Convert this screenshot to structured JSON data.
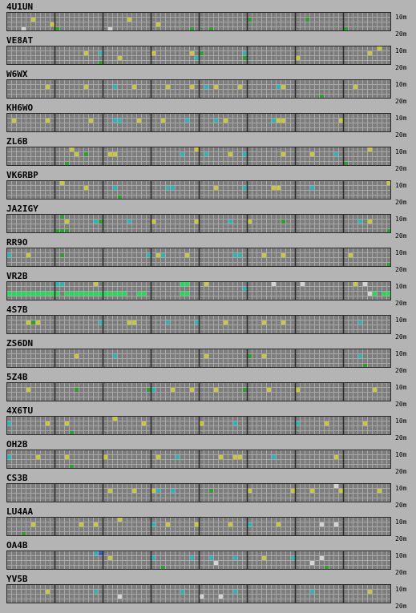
{
  "band_labels": {
    "top": "10m",
    "bottom": "20m"
  },
  "colors": {
    "background": "#b4b4b4",
    "cell": "#7d7d7d",
    "cell_line": "#a8a8a8",
    "hour_divider": "#2a2a2a",
    "yellow_signal": "#c8c83a",
    "cyan_signal": "#2ab5b5",
    "green_signal": "#2f9e2f",
    "bright_green_signal": "#18e050",
    "white_signal": "#d4d4d4",
    "blue_signal": "#3060d0"
  },
  "stations": [
    {
      "call": "4U1UN",
      "cells": [
        [
          5,
          1,
          "yellow"
        ],
        [
          9,
          2,
          "yellow"
        ],
        [
          3,
          3,
          "white"
        ],
        [
          10,
          3,
          "green"
        ],
        [
          25,
          1,
          "yellow"
        ],
        [
          21,
          3,
          "white"
        ],
        [
          31,
          2,
          "yellow"
        ],
        [
          38,
          3,
          "green"
        ],
        [
          42,
          3,
          "green"
        ],
        [
          50,
          1,
          "green"
        ],
        [
          62,
          1,
          "green"
        ],
        [
          70,
          3,
          "green"
        ]
      ]
    },
    {
      "call": "VE8AT",
      "cells": [
        [
          16,
          1,
          "yellow"
        ],
        [
          19,
          1,
          "cyan"
        ],
        [
          23,
          2,
          "yellow"
        ],
        [
          19,
          3,
          "green"
        ],
        [
          30,
          1,
          "yellow"
        ],
        [
          38,
          1,
          "yellow"
        ],
        [
          39,
          2,
          "cyan"
        ],
        [
          40,
          1,
          "green"
        ],
        [
          49,
          1,
          "cyan"
        ],
        [
          49,
          2,
          "green"
        ],
        [
          60,
          2,
          "yellow"
        ],
        [
          75,
          1,
          "yellow"
        ],
        [
          77,
          0,
          "yellow"
        ]
      ]
    },
    {
      "call": "W6WX",
      "cells": [
        [
          8,
          1,
          "yellow"
        ],
        [
          16,
          1,
          "yellow"
        ],
        [
          22,
          1,
          "cyan"
        ],
        [
          26,
          1,
          "yellow"
        ],
        [
          33,
          1,
          "yellow"
        ],
        [
          38,
          1,
          "yellow"
        ],
        [
          41,
          1,
          "cyan"
        ],
        [
          43,
          1,
          "yellow"
        ],
        [
          48,
          1,
          "yellow"
        ],
        [
          56,
          1,
          "cyan"
        ],
        [
          57,
          1,
          "yellow"
        ],
        [
          65,
          3,
          "green"
        ],
        [
          72,
          1,
          "yellow"
        ]
      ]
    },
    {
      "call": "KH6WO",
      "cells": [
        [
          1,
          1,
          "yellow"
        ],
        [
          8,
          1,
          "yellow"
        ],
        [
          17,
          1,
          "yellow"
        ],
        [
          22,
          1,
          "cyan"
        ],
        [
          23,
          1,
          "cyan"
        ],
        [
          27,
          1,
          "yellow"
        ],
        [
          32,
          1,
          "yellow"
        ],
        [
          37,
          1,
          "cyan"
        ],
        [
          43,
          1,
          "cyan"
        ],
        [
          45,
          1,
          "yellow"
        ],
        [
          55,
          1,
          "cyan"
        ],
        [
          56,
          1,
          "yellow"
        ],
        [
          57,
          1,
          "yellow"
        ],
        [
          69,
          1,
          "yellow"
        ]
      ]
    },
    {
      "call": "ZL6B",
      "cells": [
        [
          13,
          0,
          "yellow"
        ],
        [
          14,
          1,
          "yellow"
        ],
        [
          16,
          1,
          "green"
        ],
        [
          21,
          1,
          "yellow"
        ],
        [
          22,
          1,
          "yellow"
        ],
        [
          36,
          1,
          "cyan"
        ],
        [
          39,
          0,
          "yellow"
        ],
        [
          41,
          1,
          "cyan"
        ],
        [
          46,
          1,
          "yellow"
        ],
        [
          49,
          1,
          "cyan"
        ],
        [
          57,
          1,
          "yellow"
        ],
        [
          63,
          1,
          "yellow"
        ],
        [
          68,
          1,
          "cyan"
        ],
        [
          75,
          0,
          "yellow"
        ],
        [
          70,
          3,
          "green"
        ],
        [
          12,
          3,
          "green"
        ]
      ]
    },
    {
      "call": "VK6RBP",
      "cells": [
        [
          11,
          0,
          "yellow"
        ],
        [
          16,
          1,
          "yellow"
        ],
        [
          22,
          1,
          "cyan"
        ],
        [
          33,
          1,
          "cyan"
        ],
        [
          34,
          1,
          "cyan"
        ],
        [
          43,
          1,
          "yellow"
        ],
        [
          49,
          1,
          "cyan"
        ],
        [
          55,
          1,
          "yellow"
        ],
        [
          56,
          1,
          "yellow"
        ],
        [
          63,
          1,
          "cyan"
        ],
        [
          79,
          0,
          "yellow"
        ],
        [
          23,
          3,
          "green"
        ]
      ]
    },
    {
      "call": "JA2IGY",
      "cells": [
        [
          11,
          0,
          "green"
        ],
        [
          12,
          1,
          "yellow"
        ],
        [
          18,
          1,
          "cyan"
        ],
        [
          19,
          1,
          "green"
        ],
        [
          25,
          1,
          "cyan"
        ],
        [
          30,
          1,
          "yellow"
        ],
        [
          39,
          1,
          "yellow"
        ],
        [
          46,
          1,
          "cyan"
        ],
        [
          50,
          1,
          "yellow"
        ],
        [
          57,
          1,
          "green"
        ],
        [
          73,
          1,
          "cyan"
        ],
        [
          75,
          1,
          "yellow"
        ],
        [
          79,
          3,
          "green"
        ],
        [
          10,
          3,
          "green"
        ],
        [
          11,
          3,
          "green"
        ],
        [
          12,
          3,
          "green"
        ]
      ]
    },
    {
      "call": "RR9O",
      "cells": [
        [
          0,
          1,
          "cyan"
        ],
        [
          4,
          1,
          "yellow"
        ],
        [
          11,
          1,
          "green"
        ],
        [
          29,
          1,
          "cyan"
        ],
        [
          31,
          1,
          "yellow"
        ],
        [
          32,
          1,
          "cyan"
        ],
        [
          37,
          1,
          "yellow"
        ],
        [
          47,
          1,
          "cyan"
        ],
        [
          48,
          1,
          "cyan"
        ],
        [
          53,
          1,
          "yellow"
        ],
        [
          57,
          1,
          "yellow"
        ],
        [
          71,
          1,
          "yellow"
        ],
        [
          79,
          3,
          "green"
        ]
      ]
    },
    {
      "call": "VR2B",
      "cells": [
        [
          10,
          0,
          "cyan"
        ],
        [
          11,
          0,
          "cyan"
        ],
        [
          18,
          0,
          "yellow"
        ],
        [
          0,
          2,
          "bright-green"
        ],
        [
          1,
          2,
          "bright-green"
        ],
        [
          2,
          2,
          "bright-green"
        ],
        [
          3,
          2,
          "bright-green"
        ],
        [
          4,
          2,
          "bright-green"
        ],
        [
          5,
          2,
          "bright-green"
        ],
        [
          6,
          2,
          "bright-green"
        ],
        [
          7,
          2,
          "bright-green"
        ],
        [
          8,
          2,
          "bright-green"
        ],
        [
          9,
          2,
          "bright-green"
        ],
        [
          10,
          2,
          "bright-green"
        ],
        [
          12,
          2,
          "bright-green"
        ],
        [
          13,
          2,
          "bright-green"
        ],
        [
          14,
          2,
          "bright-green"
        ],
        [
          15,
          2,
          "bright-green"
        ],
        [
          16,
          2,
          "bright-green"
        ],
        [
          17,
          2,
          "bright-green"
        ],
        [
          18,
          2,
          "bright-green"
        ],
        [
          19,
          2,
          "bright-green"
        ],
        [
          20,
          2,
          "bright-green"
        ],
        [
          21,
          2,
          "bright-green"
        ],
        [
          22,
          2,
          "bright-green"
        ],
        [
          23,
          2,
          "bright-green"
        ],
        [
          24,
          2,
          "bright-green"
        ],
        [
          27,
          2,
          "bright-green"
        ],
        [
          28,
          2,
          "bright-green"
        ],
        [
          36,
          0,
          "bright-green"
        ],
        [
          37,
          0,
          "bright-green"
        ],
        [
          36,
          2,
          "bright-green"
        ],
        [
          37,
          2,
          "bright-green"
        ],
        [
          41,
          0,
          "yellow"
        ],
        [
          49,
          1,
          "cyan"
        ],
        [
          55,
          0,
          "white"
        ],
        [
          61,
          0,
          "white"
        ],
        [
          74,
          0,
          "white"
        ],
        [
          75,
          2,
          "white"
        ],
        [
          76,
          2,
          "bright-green"
        ],
        [
          78,
          2,
          "bright-green"
        ],
        [
          79,
          2,
          "bright-green"
        ],
        [
          72,
          0,
          "yellow"
        ]
      ]
    },
    {
      "call": "4S7B",
      "cells": [
        [
          4,
          1,
          "yellow"
        ],
        [
          5,
          1,
          "green"
        ],
        [
          6,
          1,
          "yellow"
        ],
        [
          19,
          1,
          "cyan"
        ],
        [
          25,
          1,
          "yellow"
        ],
        [
          26,
          1,
          "yellow"
        ],
        [
          33,
          1,
          "cyan"
        ],
        [
          39,
          1,
          "cyan"
        ],
        [
          45,
          1,
          "yellow"
        ],
        [
          53,
          1,
          "yellow"
        ],
        [
          57,
          1,
          "yellow"
        ],
        [
          73,
          1,
          "cyan"
        ]
      ]
    },
    {
      "call": "ZS6DN",
      "cells": [
        [
          14,
          1,
          "yellow"
        ],
        [
          22,
          1,
          "cyan"
        ],
        [
          41,
          1,
          "yellow"
        ],
        [
          50,
          1,
          "green"
        ],
        [
          53,
          1,
          "yellow"
        ],
        [
          73,
          1,
          "cyan"
        ],
        [
          74,
          3,
          "green"
        ]
      ]
    },
    {
      "call": "5Z4B",
      "cells": [
        [
          4,
          1,
          "yellow"
        ],
        [
          14,
          1,
          "green"
        ],
        [
          29,
          1,
          "green"
        ],
        [
          30,
          1,
          "cyan"
        ],
        [
          34,
          1,
          "yellow"
        ],
        [
          38,
          1,
          "yellow"
        ],
        [
          43,
          1,
          "yellow"
        ],
        [
          49,
          1,
          "green"
        ],
        [
          54,
          1,
          "yellow"
        ],
        [
          60,
          1,
          "yellow"
        ],
        [
          76,
          1,
          "yellow"
        ]
      ]
    },
    {
      "call": "4X6TU",
      "cells": [
        [
          0,
          1,
          "cyan"
        ],
        [
          8,
          1,
          "yellow"
        ],
        [
          12,
          1,
          "yellow"
        ],
        [
          22,
          0,
          "yellow"
        ],
        [
          28,
          1,
          "yellow"
        ],
        [
          40,
          1,
          "yellow"
        ],
        [
          47,
          1,
          "cyan"
        ],
        [
          60,
          1,
          "cyan"
        ],
        [
          66,
          1,
          "yellow"
        ],
        [
          74,
          1,
          "yellow"
        ],
        [
          13,
          3,
          "green"
        ]
      ]
    },
    {
      "call": "OH2B",
      "cells": [
        [
          0,
          1,
          "cyan"
        ],
        [
          6,
          1,
          "yellow"
        ],
        [
          12,
          1,
          "yellow"
        ],
        [
          20,
          1,
          "yellow"
        ],
        [
          31,
          1,
          "yellow"
        ],
        [
          35,
          1,
          "cyan"
        ],
        [
          44,
          1,
          "yellow"
        ],
        [
          47,
          1,
          "yellow"
        ],
        [
          48,
          1,
          "yellow"
        ],
        [
          55,
          1,
          "cyan"
        ],
        [
          68,
          1,
          "yellow"
        ],
        [
          13,
          3,
          "green"
        ]
      ]
    },
    {
      "call": "CS3B",
      "cells": [
        [
          21,
          1,
          "yellow"
        ],
        [
          26,
          1,
          "yellow"
        ],
        [
          30,
          1,
          "yellow"
        ],
        [
          31,
          1,
          "cyan"
        ],
        [
          34,
          1,
          "cyan"
        ],
        [
          42,
          1,
          "green"
        ],
        [
          50,
          1,
          "yellow"
        ],
        [
          59,
          1,
          "yellow"
        ],
        [
          63,
          1,
          "yellow"
        ],
        [
          68,
          0,
          "white"
        ],
        [
          69,
          1,
          "yellow"
        ],
        [
          77,
          1,
          "yellow"
        ]
      ]
    },
    {
      "call": "LU4AA",
      "cells": [
        [
          5,
          1,
          "yellow"
        ],
        [
          15,
          1,
          "yellow"
        ],
        [
          18,
          1,
          "yellow"
        ],
        [
          23,
          0,
          "yellow"
        ],
        [
          30,
          1,
          "cyan"
        ],
        [
          33,
          1,
          "yellow"
        ],
        [
          39,
          1,
          "yellow"
        ],
        [
          46,
          1,
          "yellow"
        ],
        [
          50,
          1,
          "cyan"
        ],
        [
          56,
          1,
          "yellow"
        ],
        [
          65,
          1,
          "white"
        ],
        [
          68,
          1,
          "white"
        ],
        [
          3,
          3,
          "green"
        ]
      ]
    },
    {
      "call": "OA4B",
      "cells": [
        [
          18,
          0,
          "cyan"
        ],
        [
          19,
          0,
          "blue"
        ],
        [
          21,
          1,
          "yellow"
        ],
        [
          30,
          1,
          "cyan"
        ],
        [
          38,
          1,
          "cyan"
        ],
        [
          42,
          1,
          "cyan"
        ],
        [
          43,
          2,
          "white"
        ],
        [
          47,
          1,
          "cyan"
        ],
        [
          53,
          1,
          "yellow"
        ],
        [
          59,
          1,
          "cyan"
        ],
        [
          63,
          2,
          "white"
        ],
        [
          65,
          1,
          "white"
        ],
        [
          66,
          3,
          "green"
        ],
        [
          32,
          3,
          "green"
        ]
      ]
    },
    {
      "call": "YV5B",
      "cells": [
        [
          8,
          1,
          "yellow"
        ],
        [
          18,
          1,
          "cyan"
        ],
        [
          23,
          2,
          "white"
        ],
        [
          36,
          1,
          "cyan"
        ],
        [
          40,
          2,
          "white"
        ],
        [
          44,
          2,
          "white"
        ],
        [
          47,
          1,
          "cyan"
        ],
        [
          63,
          1,
          "cyan"
        ],
        [
          75,
          1,
          "yellow"
        ]
      ]
    }
  ]
}
